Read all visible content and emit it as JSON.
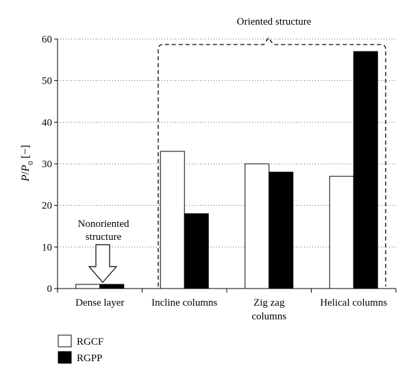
{
  "chart_data": {
    "type": "bar",
    "categories": [
      [
        "Dense layer"
      ],
      [
        "Incline columns"
      ],
      [
        "Zig zag",
        "columns"
      ],
      [
        "Helical columns"
      ]
    ],
    "series": [
      {
        "name": "RGCF",
        "values": [
          1,
          33,
          30,
          27
        ],
        "color": "#ffffff"
      },
      {
        "name": "RGPP",
        "values": [
          1,
          18,
          28,
          57
        ],
        "color": "#000000"
      }
    ],
    "ylabel": "P/P0 [−]",
    "ylim": [
      0,
      60
    ],
    "yticks": [
      "0",
      "10",
      "20",
      "30",
      "40",
      "50",
      "60"
    ],
    "grid": "dotted horizontal",
    "legend_position": "bottom-left",
    "annotations": {
      "oriented": "Oriented structure",
      "nonoriented": [
        "Nonoriented",
        "structure"
      ]
    }
  }
}
